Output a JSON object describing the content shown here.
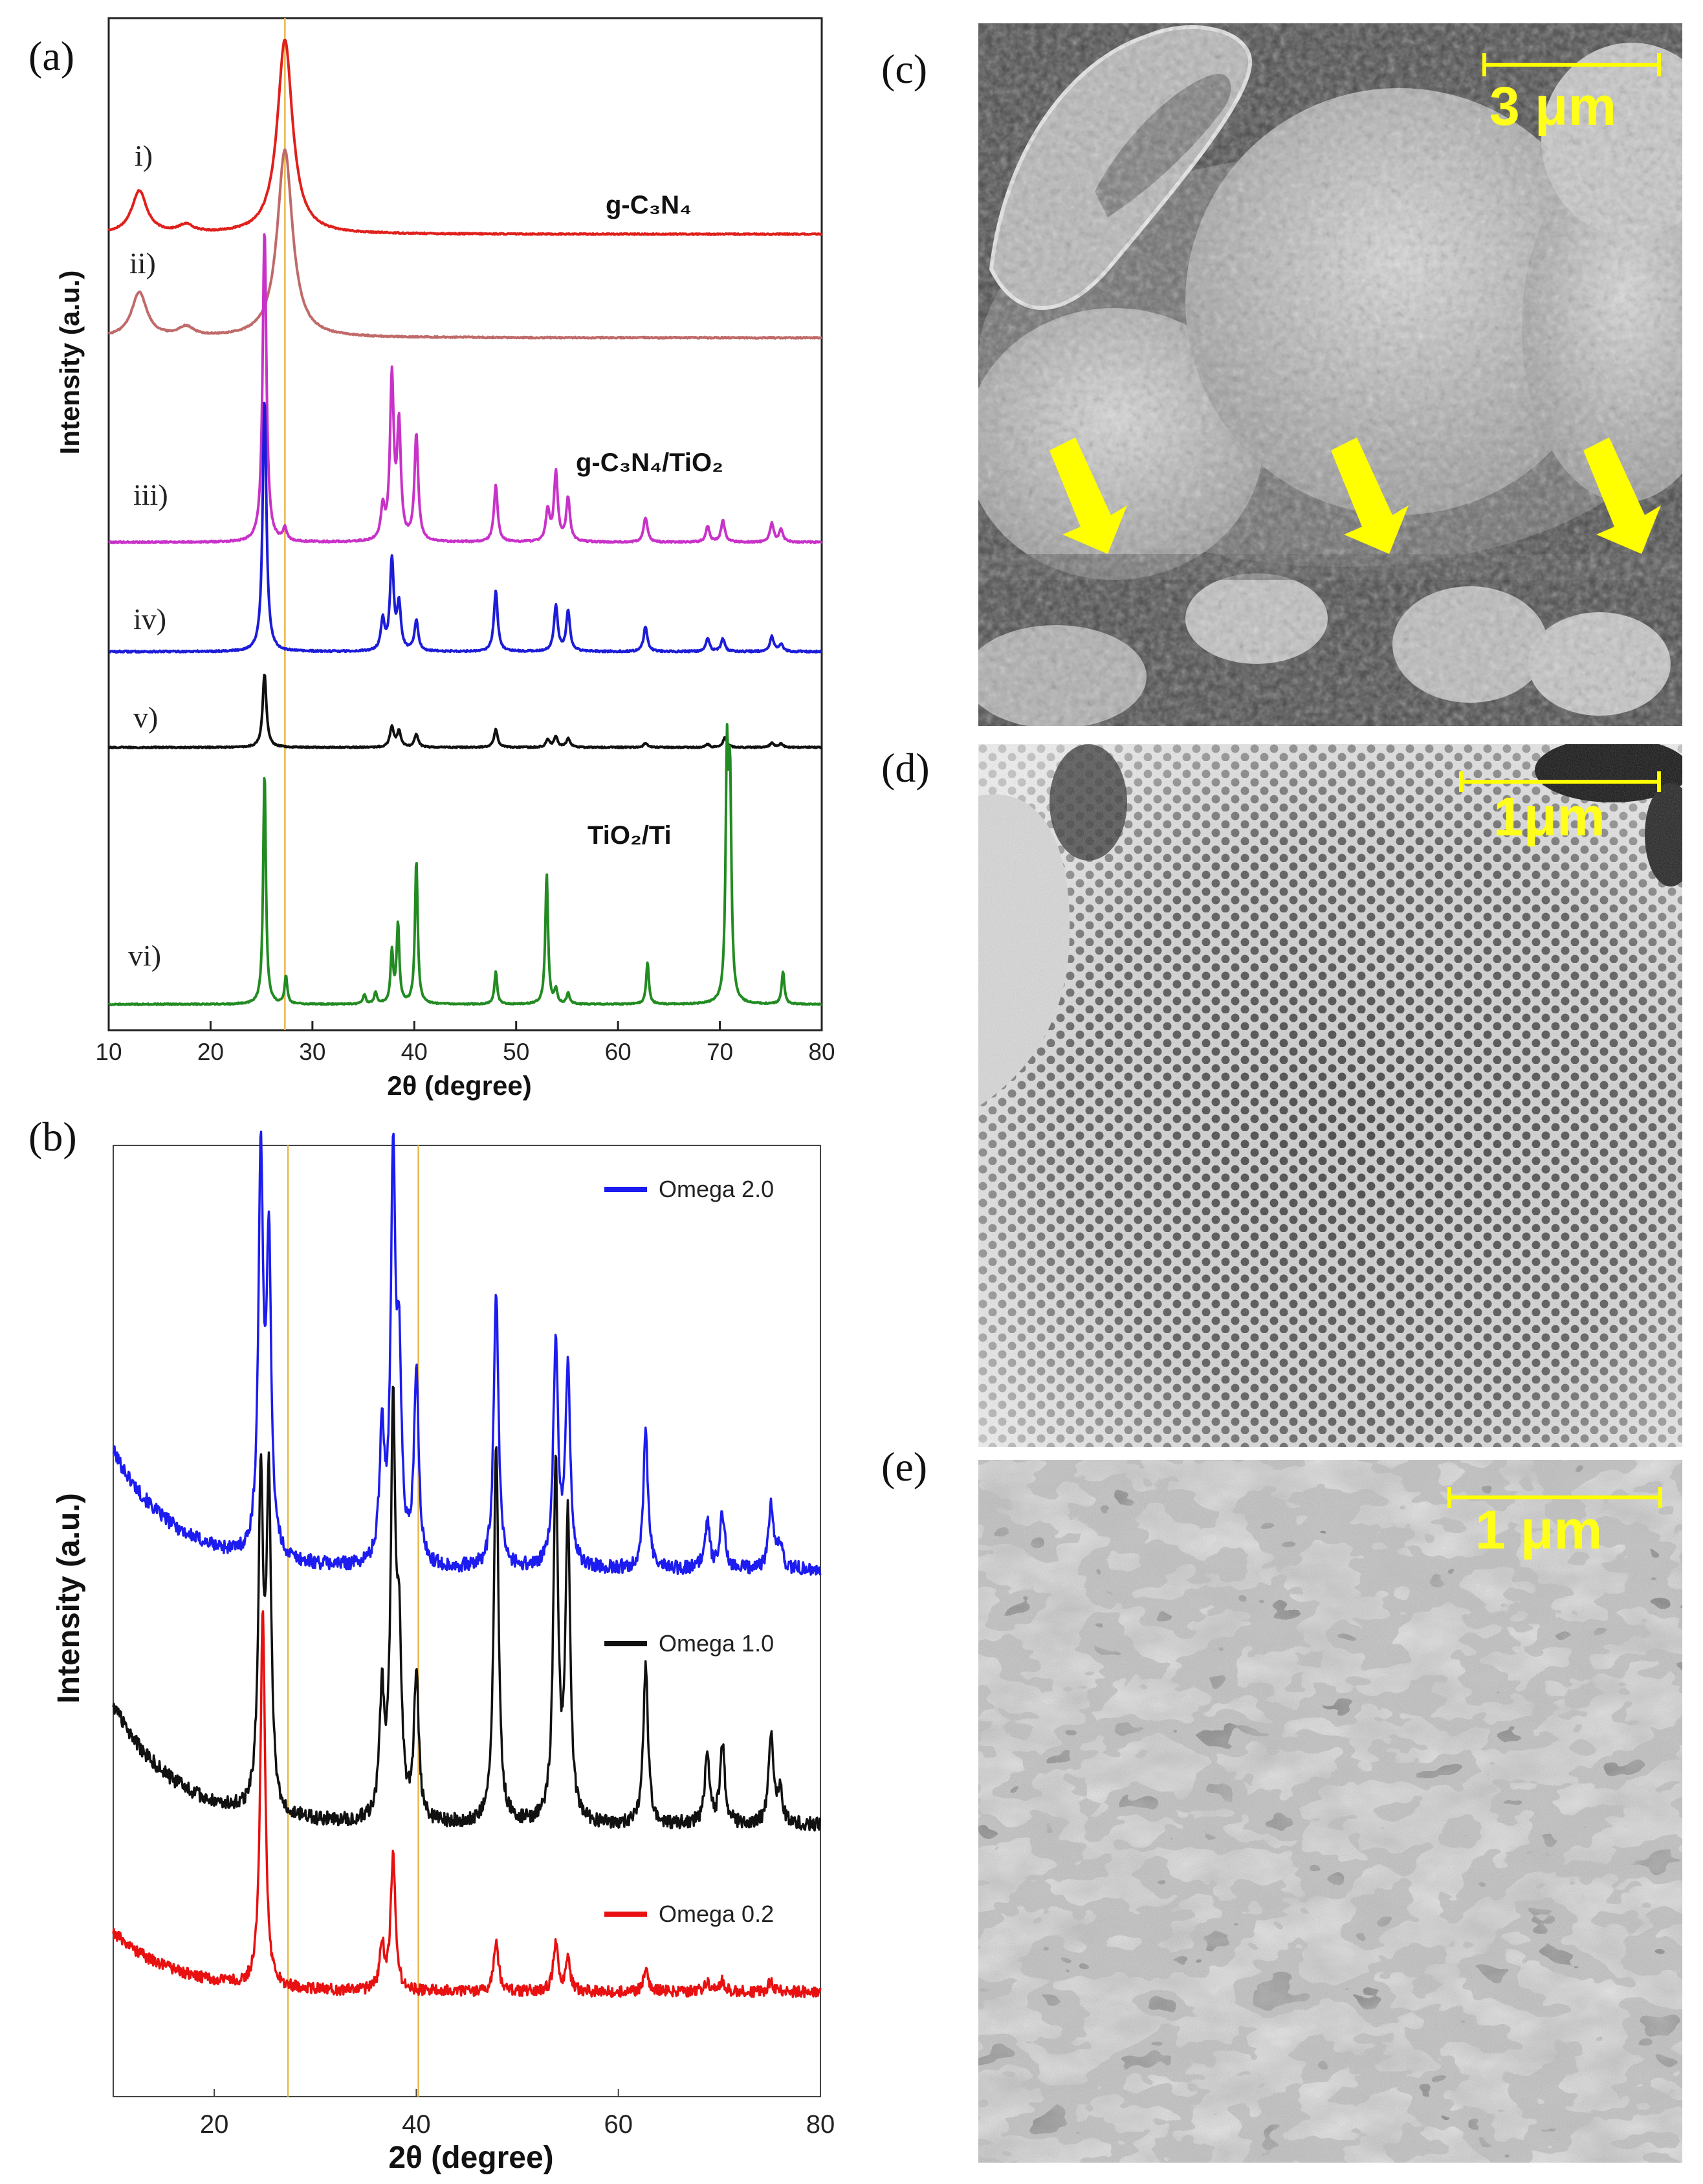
{
  "panels": {
    "a": "(a)",
    "b": "(b)",
    "c": "(c)",
    "d": "(d)",
    "e": "(e)"
  },
  "chart_data": [
    {
      "type": "line",
      "panel": "(a)",
      "xlabel": "2θ (degree)",
      "ylabel": "Intensity (a.u.)",
      "xlim": [
        10,
        80
      ],
      "xticks": [
        10,
        20,
        30,
        40,
        50,
        60,
        70,
        80
      ],
      "reference_line_x": 27.3,
      "series": [
        {
          "name": "i)",
          "label": "g-C₃N₄",
          "color": "#e0201c",
          "peaks": [
            [
              13.0,
              0.22
            ],
            [
              17.6,
              0.04
            ],
            [
              27.3,
              1.0
            ]
          ]
        },
        {
          "name": "ii)",
          "label": "",
          "color": "#c06a6a",
          "peaks": [
            [
              13.0,
              0.24
            ],
            [
              17.6,
              0.05
            ],
            [
              27.3,
              1.0
            ]
          ]
        },
        {
          "name": "iii)",
          "label": "g-C₃N₄/TiO₂",
          "color": "#c832c8",
          "peaks": [
            [
              25.3,
              1.0
            ],
            [
              27.3,
              0.04
            ],
            [
              36.9,
              0.1
            ],
            [
              37.8,
              0.52
            ],
            [
              38.5,
              0.36
            ],
            [
              40.2,
              0.34
            ],
            [
              48.0,
              0.18
            ],
            [
              53.1,
              0.1
            ],
            [
              53.9,
              0.22
            ],
            [
              55.1,
              0.14
            ],
            [
              62.7,
              0.08
            ],
            [
              68.8,
              0.05
            ],
            [
              70.3,
              0.07
            ],
            [
              75.1,
              0.06
            ],
            [
              76.0,
              0.04
            ]
          ]
        },
        {
          "name": "iv)",
          "label": "",
          "color": "#1c1cd8",
          "peaks": [
            [
              25.3,
              1.0
            ],
            [
              36.9,
              0.12
            ],
            [
              37.8,
              0.36
            ],
            [
              38.5,
              0.18
            ],
            [
              40.2,
              0.12
            ],
            [
              48.0,
              0.24
            ],
            [
              53.9,
              0.18
            ],
            [
              55.1,
              0.16
            ],
            [
              62.7,
              0.1
            ],
            [
              68.8,
              0.05
            ],
            [
              70.3,
              0.05
            ],
            [
              75.1,
              0.06
            ],
            [
              76.0,
              0.03
            ]
          ]
        },
        {
          "name": "v)",
          "label": "",
          "color": "#111111",
          "peaks": [
            [
              25.3,
              1.0
            ],
            [
              37.8,
              0.28
            ],
            [
              38.5,
              0.22
            ],
            [
              40.2,
              0.18
            ],
            [
              48.0,
              0.24
            ],
            [
              53.1,
              0.1
            ],
            [
              53.9,
              0.14
            ],
            [
              55.1,
              0.12
            ],
            [
              62.7,
              0.06
            ],
            [
              68.8,
              0.04
            ],
            [
              70.5,
              0.14
            ],
            [
              75.1,
              0.06
            ],
            [
              76.0,
              0.05
            ]
          ]
        },
        {
          "name": "vi)",
          "label": "TiO₂/Ti",
          "color": "#228b22",
          "peaks": [
            [
              25.3,
              1.0
            ],
            [
              27.4,
              0.12
            ],
            [
              35.1,
              0.04
            ],
            [
              36.2,
              0.05
            ],
            [
              37.8,
              0.22
            ],
            [
              38.4,
              0.34
            ],
            [
              40.2,
              0.62
            ],
            [
              48.0,
              0.14
            ],
            [
              53.0,
              0.56
            ],
            [
              53.9,
              0.06
            ],
            [
              55.1,
              0.05
            ],
            [
              62.9,
              0.18
            ],
            [
              70.7,
              1.0
            ],
            [
              71.0,
              0.88
            ],
            [
              76.2,
              0.14
            ]
          ]
        }
      ]
    },
    {
      "type": "line",
      "panel": "(b)",
      "xlabel": "2θ (degree)",
      "ylabel": "Intensity (a.u.)",
      "xlim": [
        10,
        80
      ],
      "xticks": [
        20,
        40,
        60,
        80
      ],
      "reference_lines_x": [
        27.3,
        40.2
      ],
      "series": [
        {
          "name": "Omega 2.0",
          "color": "#1c1cf0",
          "peaks": [
            [
              24.6,
              1.0
            ],
            [
              25.4,
              0.78
            ],
            [
              36.6,
              0.33
            ],
            [
              37.7,
              1.0
            ],
            [
              38.3,
              0.46
            ],
            [
              40.0,
              0.48
            ],
            [
              47.9,
              0.7
            ],
            [
              53.8,
              0.57
            ],
            [
              55.0,
              0.5
            ],
            [
              62.7,
              0.34
            ],
            [
              68.8,
              0.12
            ],
            [
              70.3,
              0.14
            ],
            [
              75.1,
              0.17
            ],
            [
              76.0,
              0.06
            ]
          ]
        },
        {
          "name": "Omega 1.0",
          "color": "#111111",
          "peaks": [
            [
              24.6,
              0.82
            ],
            [
              25.4,
              0.8
            ],
            [
              36.6,
              0.3
            ],
            [
              37.7,
              1.0
            ],
            [
              38.3,
              0.4
            ],
            [
              40.0,
              0.36
            ],
            [
              47.9,
              0.95
            ],
            [
              53.8,
              0.88
            ],
            [
              55.0,
              0.75
            ],
            [
              62.7,
              0.4
            ],
            [
              68.8,
              0.18
            ],
            [
              70.3,
              0.2
            ],
            [
              75.1,
              0.22
            ],
            [
              76.0,
              0.08
            ]
          ]
        },
        {
          "name": "Omega 0.2",
          "color": "#e81010",
          "peaks": [
            [
              24.8,
              1.0
            ],
            [
              36.6,
              0.12
            ],
            [
              37.7,
              0.36
            ],
            [
              47.9,
              0.14
            ],
            [
              53.8,
              0.13
            ],
            [
              55.0,
              0.08
            ],
            [
              62.7,
              0.06
            ],
            [
              68.8,
              0.03
            ],
            [
              70.3,
              0.03
            ],
            [
              75.1,
              0.03
            ]
          ]
        }
      ]
    }
  ],
  "sem_images": {
    "c": {
      "scale": "3 μm",
      "arrows": 3
    },
    "d": {
      "scale": "1μm"
    },
    "e": {
      "scale": "1 μm"
    }
  }
}
